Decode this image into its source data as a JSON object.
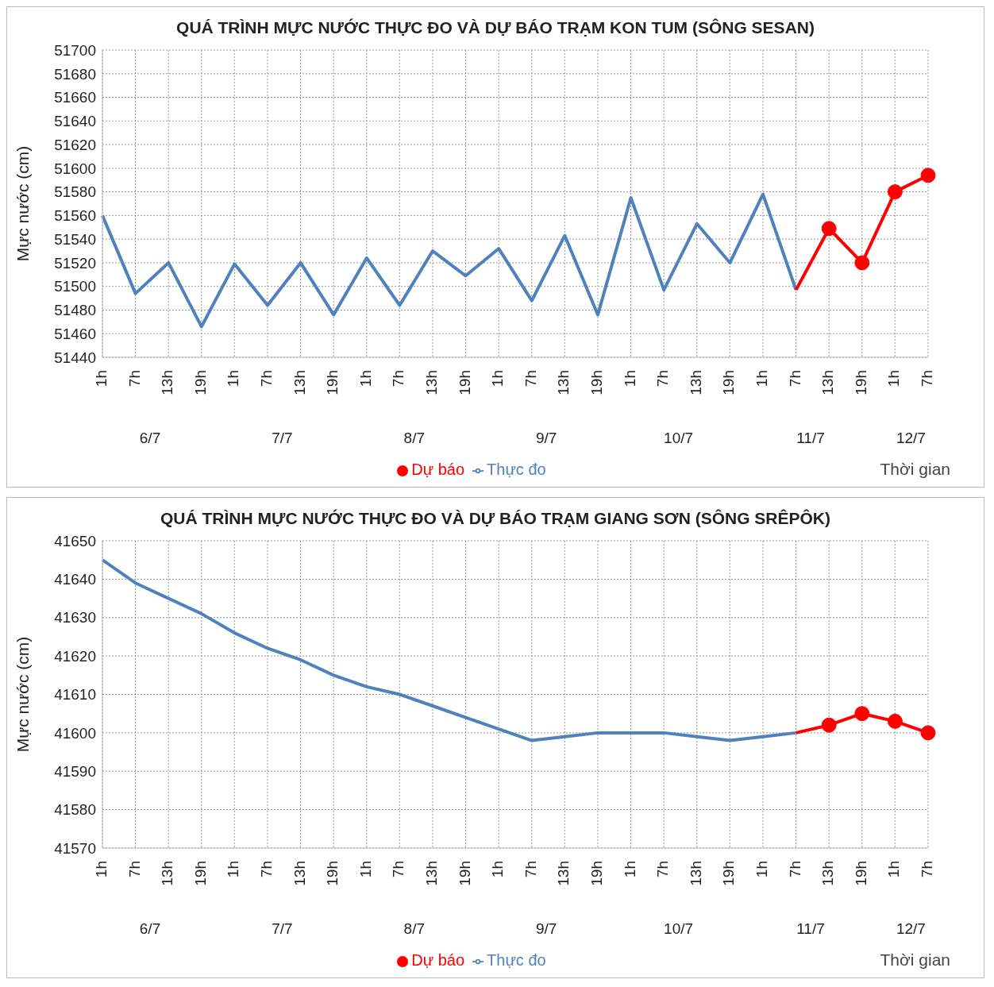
{
  "chart_data": [
    {
      "type": "line",
      "title": "QUÁ TRÌNH MỰC NƯỚC THỰC ĐO VÀ DỰ BÁO TRẠM KON TUM (SÔNG SESAN)",
      "xlabel": "Thời gian",
      "ylabel": "Mực nước (cm)",
      "categories": [
        "1h",
        "7h",
        "13h",
        "19h",
        "1h",
        "7h",
        "13h",
        "19h",
        "1h",
        "7h",
        "13h",
        "19h",
        "1h",
        "7h",
        "13h",
        "19h",
        "1h",
        "7h",
        "13h",
        "19h",
        "1h",
        "7h",
        "13h",
        "19h",
        "1h",
        "7h"
      ],
      "annotations": [
        "6/7",
        "7/7",
        "8/7",
        "9/7",
        "10/7",
        "11/7",
        "12/7"
      ],
      "series": [
        {
          "name": "Thực đo",
          "color": "#4f81bd",
          "marker": "none",
          "values": [
            51560,
            51494,
            51520,
            51466,
            51519,
            51484,
            51520,
            51476,
            51524,
            51484,
            51530,
            51509,
            51532,
            51488,
            51543,
            51476,
            51575,
            51497,
            51553,
            51520,
            51578,
            51497,
            null,
            null,
            null,
            null
          ]
        },
        {
          "name": "Dự báo",
          "color": "#ff0000",
          "marker": "circle",
          "values": [
            null,
            null,
            null,
            null,
            null,
            null,
            null,
            null,
            null,
            null,
            null,
            null,
            null,
            null,
            null,
            null,
            null,
            null,
            null,
            null,
            null,
            51497,
            51549,
            51520,
            51580,
            51594
          ]
        }
      ],
      "ylim": [
        51440,
        51700
      ],
      "yticks": [
        51440,
        51460,
        51480,
        51500,
        51520,
        51540,
        51560,
        51580,
        51600,
        51620,
        51640,
        51660,
        51680,
        51700
      ],
      "grid": true,
      "legend": "bottom"
    },
    {
      "type": "line",
      "title": "QUÁ TRÌNH MỰC NƯỚC THỰC ĐO VÀ DỰ BÁO TRẠM GIANG SƠN (SÔNG SRÊPÔK)",
      "xlabel": "Thời gian",
      "ylabel": "Mực nước (cm)",
      "categories": [
        "1h",
        "7h",
        "13h",
        "19h",
        "1h",
        "7h",
        "13h",
        "19h",
        "1h",
        "7h",
        "13h",
        "19h",
        "1h",
        "7h",
        "13h",
        "19h",
        "1h",
        "7h",
        "13h",
        "19h",
        "1h",
        "7h",
        "13h",
        "19h",
        "1h",
        "7h"
      ],
      "annotations": [
        "6/7",
        "7/7",
        "8/7",
        "9/7",
        "10/7",
        "11/7",
        "12/7"
      ],
      "series": [
        {
          "name": "Thực đo",
          "color": "#4f81bd",
          "marker": "none",
          "values": [
            41645,
            41639,
            41635,
            41631,
            41626,
            41622,
            41619,
            41615,
            41612,
            41610,
            41607,
            41604,
            41601,
            41598,
            41599,
            41600,
            41600,
            41600,
            41599,
            41598,
            41599,
            41600,
            null,
            null,
            null,
            null
          ]
        },
        {
          "name": "Dự báo",
          "color": "#ff0000",
          "marker": "circle",
          "values": [
            null,
            null,
            null,
            null,
            null,
            null,
            null,
            null,
            null,
            null,
            null,
            null,
            null,
            null,
            null,
            null,
            null,
            null,
            null,
            null,
            null,
            41600,
            41602,
            41605,
            41603,
            41600
          ]
        }
      ],
      "ylim": [
        41570,
        41650
      ],
      "yticks": [
        41570,
        41580,
        41590,
        41600,
        41610,
        41620,
        41630,
        41640,
        41650
      ],
      "grid": true,
      "legend": "bottom"
    }
  ]
}
